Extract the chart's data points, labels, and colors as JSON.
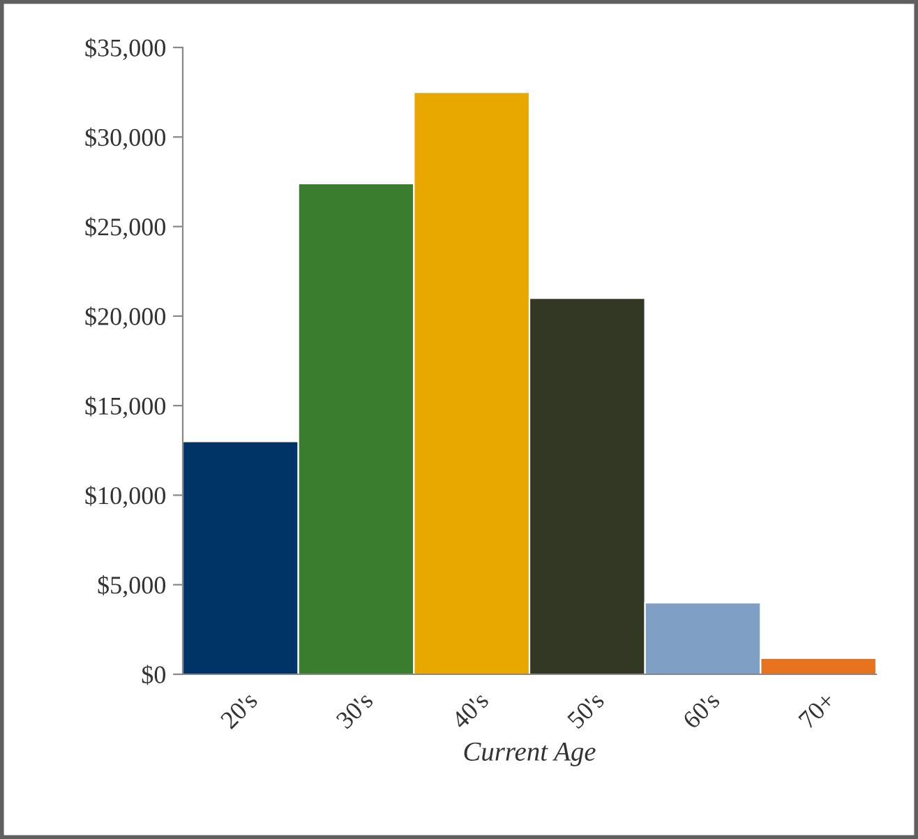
{
  "chart_data": {
    "type": "bar",
    "xlabel": "Current Age",
    "categories": [
      "20's",
      "30's",
      "40's",
      "50's",
      "60's",
      "70+"
    ],
    "values": [
      13000,
      27400,
      32500,
      21000,
      4000,
      900
    ],
    "colors": [
      "#003366",
      "#3a7d2e",
      "#e8a800",
      "#333824",
      "#7f9fc5",
      "#e8731f"
    ],
    "ylim": [
      0,
      35000
    ],
    "yticks": [
      {
        "value": 0,
        "label": "$0"
      },
      {
        "value": 5000,
        "label": "$5,000"
      },
      {
        "value": 10000,
        "label": "$10,000"
      },
      {
        "value": 15000,
        "label": "$15,000"
      },
      {
        "value": 20000,
        "label": "$20,000"
      },
      {
        "value": 25000,
        "label": "$25,000"
      },
      {
        "value": 30000,
        "label": "$30,000"
      },
      {
        "value": 35000,
        "label": "$35,000"
      }
    ],
    "grid": false,
    "legend": false
  }
}
